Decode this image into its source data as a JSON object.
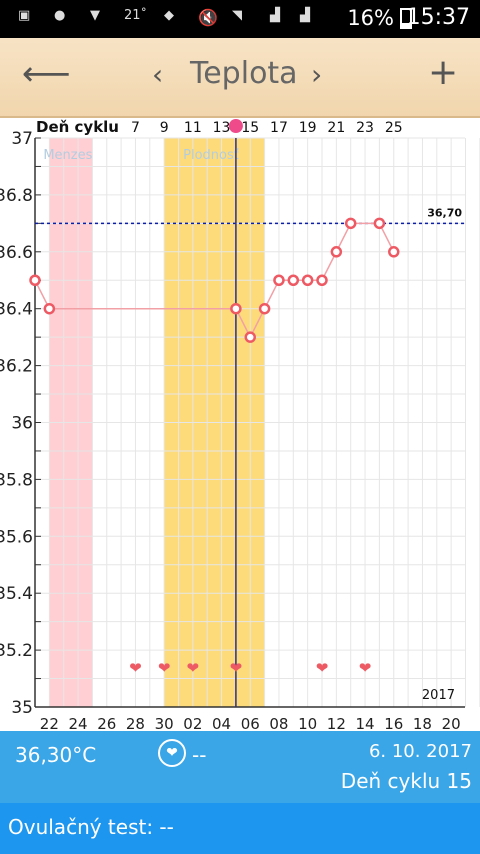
{
  "status_bar": {
    "notif_text": "21˚",
    "battery": "16%",
    "time": "15:37"
  },
  "toolbar": {
    "title": "Teplota",
    "back_icon": "arrow-left-icon",
    "prev_icon": "chevron-left-icon",
    "next_icon": "chevron-right-icon",
    "add_icon": "plus-icon"
  },
  "chart_data": {
    "type": "line",
    "cycle_label": "Deň cyklu",
    "cycle_ticks": [
      "7",
      "9",
      "11",
      "13",
      "15",
      "17",
      "19",
      "21",
      "23",
      "25"
    ],
    "date_ticks": [
      "22",
      "24",
      "26",
      "28",
      "30",
      "02",
      "04",
      "06",
      "08",
      "10",
      "12",
      "14",
      "16",
      "18",
      "20"
    ],
    "y_ticks": [
      "37",
      "36.8",
      "36.6",
      "36.4",
      "36.2",
      "36",
      "35.8",
      "35.6",
      "35.4",
      "35.2",
      "35"
    ],
    "ylim": [
      35,
      37
    ],
    "x_range": [
      0,
      31
    ],
    "threshold": {
      "value": 36.7,
      "label": "36,70"
    },
    "menses": {
      "label": "Menzes",
      "start": 1.0,
      "end": 4.0
    },
    "fertile": {
      "label": "Plodnosť",
      "start": 9.0,
      "end": 16.0
    },
    "current_day": 14.0,
    "year_label": "2017",
    "points": [
      {
        "x": 0,
        "y": 36.5
      },
      {
        "x": 1,
        "y": 36.4
      },
      {
        "x": 14,
        "y": 36.4
      },
      {
        "x": 15,
        "y": 36.3
      },
      {
        "x": 16,
        "y": 36.4
      },
      {
        "x": 17,
        "y": 36.5
      },
      {
        "x": 18,
        "y": 36.5
      },
      {
        "x": 19,
        "y": 36.5
      },
      {
        "x": 20,
        "y": 36.5
      },
      {
        "x": 21,
        "y": 36.6
      },
      {
        "x": 22,
        "y": 36.7
      },
      {
        "x": 24,
        "y": 36.7
      },
      {
        "x": 25,
        "y": 36.6
      }
    ],
    "hearts": [
      7,
      9,
      11,
      14,
      20,
      23
    ],
    "colors": {
      "menses": "#ffcfd3",
      "fertile": "#fddb7a",
      "line": "#f2a0a6",
      "marker": "#ee5a64",
      "threshold": "#0a1ea8",
      "current": "#2a2f8e",
      "current_dot": "#ef4a8a",
      "grid": "#e6e6e6",
      "menses_label": "#b3cde0"
    }
  },
  "info_bar": {
    "temperature": "36,30°C",
    "heart_value": "--",
    "date": "6. 10. 2017",
    "cycle_day": "Deň cyklu 15"
  },
  "ovulation": {
    "label": "Ovulačný test: --"
  }
}
